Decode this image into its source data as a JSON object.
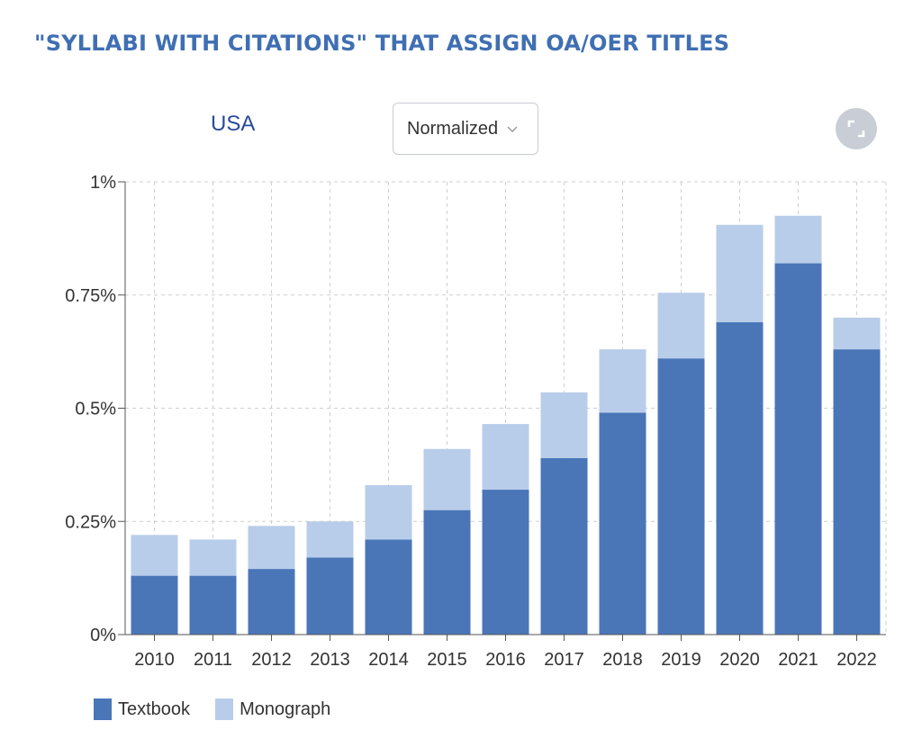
{
  "title": "\"SYLLABI WITH CITATIONS\" THAT ASSIGN OA/OER TITLES",
  "region": "USA",
  "mode_select": {
    "value": "Normalized",
    "icon": "chevron-down-icon"
  },
  "expand_icon": "expand-icon",
  "colors": {
    "title": "#3f6fb3",
    "textbook": "#4a76b8",
    "monograph": "#b8cde9",
    "grid": "#cfcfcf"
  },
  "chart_data": {
    "type": "bar",
    "stacked": true,
    "categories": [
      "2010",
      "2011",
      "2012",
      "2013",
      "2014",
      "2015",
      "2016",
      "2017",
      "2018",
      "2019",
      "2020",
      "2021",
      "2022"
    ],
    "series": [
      {
        "name": "Textbook",
        "color": "#4a76b8",
        "values": [
          0.13,
          0.13,
          0.145,
          0.17,
          0.21,
          0.275,
          0.32,
          0.39,
          0.49,
          0.61,
          0.69,
          0.82,
          0.63
        ]
      },
      {
        "name": "Monograph",
        "color": "#b8cde9",
        "values": [
          0.09,
          0.08,
          0.095,
          0.08,
          0.12,
          0.135,
          0.145,
          0.145,
          0.14,
          0.145,
          0.215,
          0.105,
          0.07
        ]
      }
    ],
    "ylim": [
      0,
      1
    ],
    "y_ticks": [
      0,
      0.25,
      0.5,
      0.75,
      1
    ],
    "y_tick_labels": [
      "0%",
      "0.25%",
      "0.5%",
      "0.75%",
      "1%"
    ],
    "grid": true,
    "legend_position": "bottom-left"
  }
}
